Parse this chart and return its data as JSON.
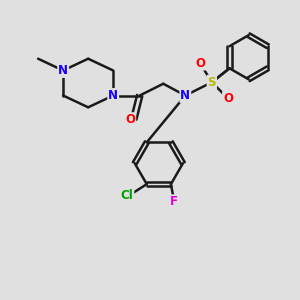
{
  "background_color": "#e0e0e0",
  "bond_color": "#1a1a1a",
  "bond_width": 1.8,
  "font_size": 8.5,
  "atom_colors": {
    "N": "#1400ff",
    "O": "#ff0000",
    "S": "#b8b800",
    "Cl": "#00a000",
    "F": "#e000e0"
  },
  "figsize": [
    3.0,
    3.0
  ],
  "dpi": 100
}
